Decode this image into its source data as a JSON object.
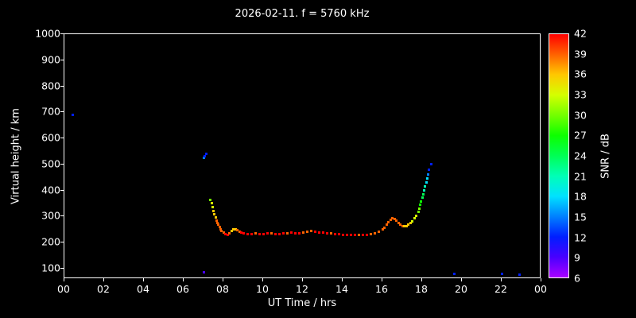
{
  "title": "2026-02-11. f = 5760 kHz",
  "axes": {
    "x_label": "UT Time / hrs",
    "y_label": "Virtual height / km",
    "colorbar_label": "SNR / dB",
    "x_ticks": [
      "00",
      "02",
      "04",
      "06",
      "08",
      "10",
      "12",
      "14",
      "16",
      "18",
      "20",
      "22",
      "00"
    ],
    "y_ticks": [
      "100",
      "200",
      "300",
      "400",
      "500",
      "600",
      "700",
      "800",
      "900",
      "1000"
    ],
    "colorbar_ticks": [
      "6",
      "9",
      "12",
      "15",
      "18",
      "21",
      "24",
      "27",
      "30",
      "33",
      "36",
      "39",
      "42"
    ]
  },
  "chart_data": {
    "type": "scatter",
    "title": "2026-02-11. f = 5760 kHz",
    "xlabel": "UT Time / hrs",
    "ylabel": "Virtual height / km",
    "xlim": [
      0,
      24
    ],
    "ylim": [
      60,
      1000
    ],
    "grid": false,
    "colorbar": {
      "label": "SNR / dB",
      "min": 6,
      "max": 42,
      "ticks": [
        6,
        9,
        12,
        15,
        18,
        21,
        24,
        27,
        30,
        33,
        36,
        39,
        42
      ]
    },
    "point_format": [
      "ut_time_hrs",
      "virtual_height_km",
      "snr_db"
    ],
    "points": [
      [
        0.4,
        690,
        12
      ],
      [
        7.0,
        85,
        9
      ],
      [
        7.0,
        525,
        15
      ],
      [
        7.05,
        533,
        12
      ],
      [
        7.15,
        540,
        12
      ],
      [
        7.35,
        365,
        30
      ],
      [
        7.4,
        350,
        33
      ],
      [
        7.45,
        335,
        33
      ],
      [
        7.5,
        320,
        36
      ],
      [
        7.55,
        308,
        36
      ],
      [
        7.6,
        296,
        36
      ],
      [
        7.65,
        285,
        39
      ],
      [
        7.7,
        276,
        39
      ],
      [
        7.75,
        268,
        39
      ],
      [
        7.8,
        260,
        39
      ],
      [
        7.85,
        252,
        39
      ],
      [
        7.9,
        246,
        39
      ],
      [
        8.0,
        238,
        39
      ],
      [
        8.1,
        233,
        42
      ],
      [
        8.2,
        230,
        42
      ],
      [
        8.3,
        235,
        39
      ],
      [
        8.4,
        245,
        36
      ],
      [
        8.5,
        250,
        36
      ],
      [
        8.6,
        252,
        36
      ],
      [
        8.7,
        248,
        39
      ],
      [
        8.8,
        242,
        39
      ],
      [
        8.9,
        238,
        42
      ],
      [
        9.0,
        235,
        42
      ],
      [
        9.2,
        233,
        42
      ],
      [
        9.4,
        232,
        42
      ],
      [
        9.6,
        234,
        39
      ],
      [
        9.8,
        233,
        42
      ],
      [
        10.0,
        232,
        42
      ],
      [
        10.2,
        234,
        42
      ],
      [
        10.4,
        235,
        39
      ],
      [
        10.6,
        233,
        42
      ],
      [
        10.8,
        232,
        42
      ],
      [
        11.0,
        234,
        42
      ],
      [
        11.2,
        236,
        39
      ],
      [
        11.4,
        238,
        42
      ],
      [
        11.6,
        236,
        42
      ],
      [
        11.8,
        234,
        42
      ],
      [
        12.0,
        238,
        39
      ],
      [
        12.2,
        242,
        39
      ],
      [
        12.4,
        245,
        39
      ],
      [
        12.6,
        243,
        42
      ],
      [
        12.8,
        240,
        42
      ],
      [
        13.0,
        238,
        42
      ],
      [
        13.2,
        236,
        42
      ],
      [
        13.4,
        234,
        39
      ],
      [
        13.6,
        233,
        42
      ],
      [
        13.8,
        232,
        42
      ],
      [
        14.0,
        230,
        42
      ],
      [
        14.2,
        229,
        42
      ],
      [
        14.4,
        228,
        42
      ],
      [
        14.6,
        228,
        42
      ],
      [
        14.8,
        228,
        39
      ],
      [
        15.0,
        229,
        42
      ],
      [
        15.2,
        230,
        42
      ],
      [
        15.4,
        232,
        39
      ],
      [
        15.6,
        236,
        39
      ],
      [
        15.8,
        242,
        39
      ],
      [
        16.0,
        250,
        39
      ],
      [
        16.1,
        258,
        39
      ],
      [
        16.2,
        268,
        39
      ],
      [
        16.3,
        278,
        39
      ],
      [
        16.4,
        288,
        39
      ],
      [
        16.5,
        292,
        39
      ],
      [
        16.6,
        290,
        39
      ],
      [
        16.7,
        283,
        39
      ],
      [
        16.8,
        275,
        39
      ],
      [
        16.9,
        268,
        39
      ],
      [
        17.0,
        264,
        39
      ],
      [
        17.1,
        262,
        36
      ],
      [
        17.2,
        264,
        36
      ],
      [
        17.3,
        268,
        36
      ],
      [
        17.4,
        274,
        36
      ],
      [
        17.5,
        282,
        33
      ],
      [
        17.6,
        292,
        33
      ],
      [
        17.7,
        304,
        33
      ],
      [
        17.8,
        318,
        30
      ],
      [
        17.85,
        330,
        30
      ],
      [
        17.9,
        344,
        27
      ],
      [
        17.95,
        358,
        27
      ],
      [
        18.0,
        372,
        24
      ],
      [
        18.05,
        386,
        24
      ],
      [
        18.1,
        400,
        21
      ],
      [
        18.15,
        415,
        21
      ],
      [
        18.2,
        430,
        18
      ],
      [
        18.25,
        445,
        18
      ],
      [
        18.3,
        462,
        15
      ],
      [
        18.35,
        480,
        12
      ],
      [
        18.45,
        500,
        12
      ],
      [
        19.6,
        80,
        12
      ],
      [
        22.0,
        80,
        12
      ],
      [
        22.9,
        78,
        12
      ]
    ]
  }
}
